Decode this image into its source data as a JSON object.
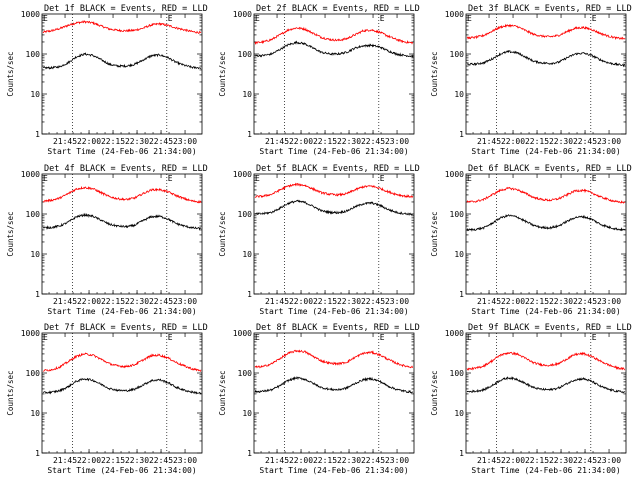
{
  "chart_data": [
    {
      "type": "line",
      "title": "Det 1f BLACK = Events, RED = LLD",
      "xlabel": "Start Time (24-Feb-06 21:34:00)",
      "ylabel": "Counts/sec",
      "yscale": "log",
      "ylim": [
        1,
        1000
      ],
      "xticks": [
        "21:45",
        "22:00",
        "22:15",
        "22:30",
        "22:45",
        "23:00"
      ],
      "yticks": [
        "1",
        "10",
        "100",
        "1000"
      ],
      "markers": [
        "E",
        "E"
      ],
      "series": [
        {
          "color": "#ff0000",
          "values": [
            350,
            380,
            430,
            520,
            600,
            640,
            600,
            500,
            420,
            390,
            380,
            390,
            440,
            530,
            570,
            520,
            450,
            400,
            360,
            340
          ]
        },
        {
          "color": "#000000",
          "values": [
            45,
            45,
            48,
            60,
            85,
            100,
            92,
            72,
            55,
            50,
            50,
            55,
            70,
            90,
            95,
            82,
            62,
            52,
            46,
            45
          ]
        }
      ]
    },
    {
      "type": "line",
      "title": "Det 2f BLACK = Events, RED = LLD",
      "xlabel": "Start Time (24-Feb-06 21:34:00)",
      "ylabel": "Counts/sec",
      "yscale": "log",
      "ylim": [
        1,
        1000
      ],
      "xticks": [
        "21:45",
        "22:00",
        "22:15",
        "22:30",
        "22:45",
        "23:00"
      ],
      "yticks": [
        "1",
        "10",
        "100",
        "1000"
      ],
      "markers": [
        "E",
        "E"
      ],
      "series": [
        {
          "color": "#ff0000",
          "values": [
            190,
            200,
            230,
            300,
            400,
            450,
            420,
            330,
            260,
            230,
            220,
            240,
            300,
            380,
            400,
            350,
            280,
            230,
            200,
            190
          ]
        },
        {
          "color": "#000000",
          "values": [
            90,
            92,
            100,
            130,
            170,
            195,
            180,
            140,
            110,
            100,
            100,
            110,
            140,
            160,
            165,
            150,
            120,
            100,
            92,
            88
          ]
        }
      ]
    },
    {
      "type": "line",
      "title": "Det 3f BLACK = Events, RED = LLD",
      "xlabel": "Start Time (24-Feb-06 21:34:00)",
      "ylabel": "Counts/sec",
      "yscale": "log",
      "ylim": [
        1,
        1000
      ],
      "xticks": [
        "21:45",
        "22:00",
        "22:15",
        "22:30",
        "22:45",
        "23:00"
      ],
      "yticks": [
        "1",
        "10",
        "100",
        "1000"
      ],
      "markers": [
        "E",
        "E"
      ],
      "series": [
        {
          "color": "#ff0000",
          "values": [
            250,
            260,
            290,
            370,
            470,
            520,
            490,
            390,
            310,
            280,
            270,
            290,
            360,
            440,
            460,
            410,
            330,
            280,
            250,
            240
          ]
        },
        {
          "color": "#000000",
          "values": [
            55,
            56,
            60,
            75,
            100,
            115,
            108,
            85,
            66,
            60,
            58,
            62,
            80,
            100,
            105,
            92,
            72,
            60,
            55,
            52
          ]
        }
      ]
    },
    {
      "type": "line",
      "title": "Det 4f BLACK = Events, RED = LLD",
      "xlabel": "Start Time (24-Feb-06 21:34:00)",
      "ylabel": "Counts/sec",
      "yscale": "log",
      "ylim": [
        1,
        1000
      ],
      "xticks": [
        "21:45",
        "22:00",
        "22:15",
        "22:30",
        "22:45",
        "23:00"
      ],
      "yticks": [
        "1",
        "10",
        "100",
        "1000"
      ],
      "markers": [
        "E",
        "E"
      ],
      "series": [
        {
          "color": "#ff0000",
          "values": [
            210,
            220,
            250,
            320,
            420,
            460,
            430,
            340,
            270,
            240,
            230,
            250,
            320,
            400,
            410,
            360,
            290,
            240,
            210,
            200
          ]
        },
        {
          "color": "#000000",
          "values": [
            45,
            46,
            50,
            62,
            85,
            95,
            88,
            70,
            55,
            50,
            48,
            52,
            68,
            85,
            88,
            76,
            58,
            50,
            45,
            43
          ]
        }
      ]
    },
    {
      "type": "line",
      "title": "Det 5f BLACK = Events, RED = LLD",
      "xlabel": "Start Time (24-Feb-06 21:34:00)",
      "ylabel": "Counts/sec",
      "yscale": "log",
      "ylim": [
        1,
        1000
      ],
      "xticks": [
        "21:45",
        "22:00",
        "22:15",
        "22:30",
        "22:45",
        "23:00"
      ],
      "yticks": [
        "1",
        "10",
        "100",
        "1000"
      ],
      "markers": [
        "E",
        "E"
      ],
      "series": [
        {
          "color": "#ff0000",
          "values": [
            270,
            280,
            310,
            400,
            500,
            550,
            520,
            420,
            340,
            310,
            300,
            320,
            400,
            480,
            500,
            440,
            360,
            310,
            280,
            270
          ]
        },
        {
          "color": "#000000",
          "values": [
            100,
            102,
            110,
            140,
            185,
            210,
            195,
            155,
            120,
            110,
            108,
            118,
            150,
            180,
            190,
            165,
            130,
            110,
            102,
            98
          ]
        }
      ]
    },
    {
      "type": "line",
      "title": "Det 6f BLACK = Events, RED = LLD",
      "xlabel": "Start Time (24-Feb-06 21:34:00)",
      "ylabel": "Counts/sec",
      "yscale": "log",
      "ylim": [
        1,
        1000
      ],
      "xticks": [
        "21:45",
        "22:00",
        "22:15",
        "22:30",
        "22:45",
        "23:00"
      ],
      "yticks": [
        "1",
        "10",
        "100",
        "1000"
      ],
      "markers": [
        "E",
        "E"
      ],
      "series": [
        {
          "color": "#ff0000",
          "values": [
            200,
            205,
            230,
            300,
            390,
            440,
            410,
            330,
            260,
            230,
            220,
            240,
            300,
            380,
            390,
            340,
            270,
            230,
            200,
            195
          ]
        },
        {
          "color": "#000000",
          "values": [
            40,
            41,
            45,
            58,
            80,
            92,
            85,
            66,
            52,
            46,
            45,
            50,
            65,
            82,
            86,
            74,
            56,
            47,
            42,
            40
          ]
        }
      ]
    },
    {
      "type": "line",
      "title": "Det 7f BLACK = Events, RED = LLD",
      "xlabel": "Start Time (24-Feb-06 21:34:00)",
      "ylabel": "Counts/sec",
      "yscale": "log",
      "ylim": [
        1,
        1000
      ],
      "xticks": [
        "21:45",
        "22:00",
        "22:15",
        "22:30",
        "22:45",
        "23:00"
      ],
      "yticks": [
        "1",
        "10",
        "100",
        "1000"
      ],
      "markers": [
        "E",
        "E"
      ],
      "series": [
        {
          "color": "#ff0000",
          "values": [
            115,
            120,
            140,
            190,
            260,
            300,
            280,
            220,
            170,
            150,
            145,
            160,
            210,
            270,
            280,
            240,
            185,
            150,
            125,
            115
          ]
        },
        {
          "color": "#000000",
          "values": [
            32,
            33,
            36,
            45,
            62,
            72,
            66,
            52,
            41,
            37,
            36,
            39,
            50,
            64,
            68,
            58,
            44,
            37,
            33,
            31
          ]
        }
      ]
    },
    {
      "type": "line",
      "title": "Det 8f BLACK = Events, RED = LLD",
      "xlabel": "Start Time (24-Feb-06 21:34:00)",
      "ylabel": "Counts/sec",
      "yscale": "log",
      "ylim": [
        1,
        1000
      ],
      "xticks": [
        "21:45",
        "22:00",
        "22:15",
        "22:30",
        "22:45",
        "23:00"
      ],
      "yticks": [
        "1",
        "10",
        "100",
        "1000"
      ],
      "markers": [
        "E",
        "E"
      ],
      "series": [
        {
          "color": "#ff0000",
          "values": [
            140,
            145,
            170,
            230,
            310,
            360,
            340,
            260,
            200,
            175,
            170,
            185,
            245,
            310,
            330,
            285,
            220,
            175,
            150,
            140
          ]
        },
        {
          "color": "#000000",
          "values": [
            34,
            35,
            38,
            48,
            65,
            76,
            70,
            55,
            43,
            39,
            38,
            42,
            54,
            68,
            72,
            62,
            47,
            39,
            35,
            33
          ]
        }
      ]
    },
    {
      "type": "line",
      "title": "Det 9f BLACK = Events, RED = LLD",
      "xlabel": "Start Time (24-Feb-06 21:34:00)",
      "ylabel": "Counts/sec",
      "yscale": "log",
      "ylim": [
        1,
        1000
      ],
      "xticks": [
        "21:45",
        "22:00",
        "22:15",
        "22:30",
        "22:45",
        "23:00"
      ],
      "yticks": [
        "1",
        "10",
        "100",
        "1000"
      ],
      "markers": [
        "E",
        "E"
      ],
      "series": [
        {
          "color": "#ff0000",
          "values": [
            125,
            130,
            150,
            200,
            280,
            320,
            300,
            235,
            180,
            160,
            155,
            170,
            225,
            290,
            305,
            260,
            200,
            160,
            135,
            125
          ]
        },
        {
          "color": "#000000",
          "values": [
            34,
            35,
            38,
            48,
            66,
            76,
            70,
            55,
            43,
            39,
            38,
            42,
            54,
            68,
            72,
            62,
            47,
            39,
            35,
            33
          ]
        }
      ]
    }
  ]
}
